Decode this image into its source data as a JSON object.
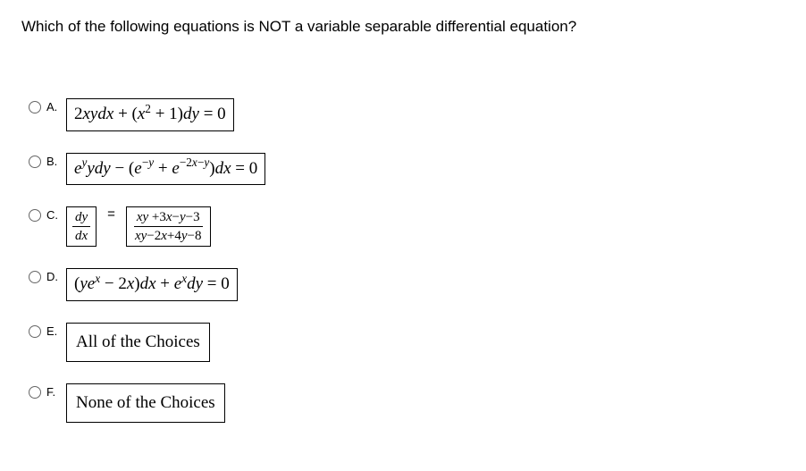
{
  "question": "Which of the following equations is NOT a variable separable differential equation?",
  "options": {
    "A": {
      "letter": "A.",
      "eq_html": "2<span class='it'>xydx</span> + (<span class='it'>x</span><span class='sup'>2</span> + 1)<span class='it'>dy</span> = 0"
    },
    "B": {
      "letter": "B.",
      "eq_html": "<span class='it'>e</span><span class='sup it'>y</span><span class='it'>ydy</span> − (<span class='it'>e</span><span class='sup'>−<span class='it'>y</span></span> + <span class='it'>e</span><span class='sup'>−2<span class='it'>x</span>−<span class='it'>y</span></span>)<span class='it'>dx</span> = 0"
    },
    "C": {
      "letter": "C.",
      "left_num": "dy",
      "left_den": "dx",
      "right_num_html": "<span class='it'>xy</span> +3<span class='it'>x</span>−<span class='it'>y</span>−3",
      "right_den_html": "<span class='it'>xy</span>−2<span class='it'>x</span>+4<span class='it'>y</span>−8"
    },
    "D": {
      "letter": "D.",
      "eq_html": "(<span class='it'>ye</span><span class='sup it'>x</span> − 2<span class='it'>x</span>)<span class='it'>dx</span> + <span class='it'>e</span><span class='sup it'>x</span><span class='it'>dy</span> = 0"
    },
    "E": {
      "letter": "E.",
      "text": "All of the Choices"
    },
    "F": {
      "letter": "F.",
      "text": "None of the Choices"
    }
  },
  "style": {
    "text_color": "#000000",
    "background": "#ffffff",
    "box_border": "#000000",
    "radio_border": "#666666",
    "question_fontsize": 17,
    "option_fontsize": 19,
    "letter_fontsize": 13
  }
}
